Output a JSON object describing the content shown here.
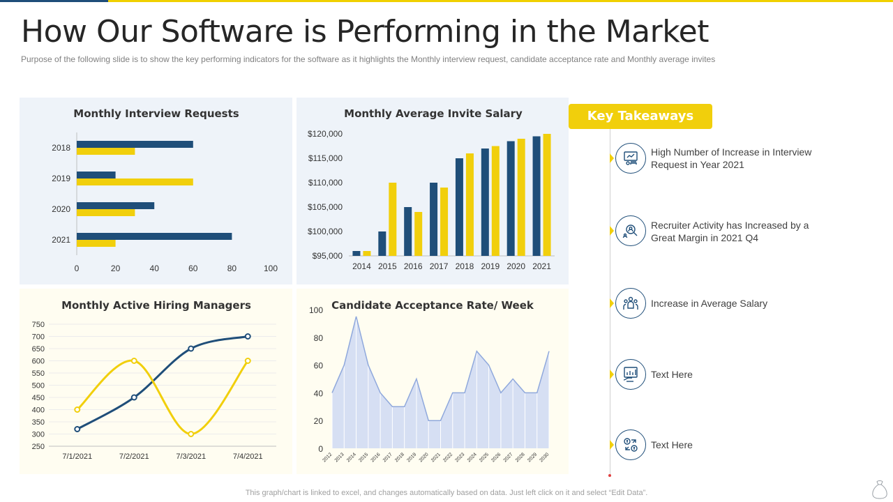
{
  "header": {
    "title": "How Our Software is Performing in the Market",
    "subtitle": "Purpose of the following  slide is to show the key performing  indicators for the software  as it highlights the Monthly interview  request, candidate acceptance rate and Monthly average  invites"
  },
  "colors": {
    "navy": "#1f4e79",
    "yellow": "#f1cf0c",
    "area_fill": "#d6dff3",
    "area_line": "#8fa8dc"
  },
  "chart_data": [
    {
      "type": "bar",
      "orientation": "horizontal",
      "title": "Monthly Interview Requests",
      "categories": [
        "2018",
        "2019",
        "2020",
        "2021"
      ],
      "series": [
        {
          "color": "#1f4e79",
          "values": [
            60,
            20,
            40,
            80
          ]
        },
        {
          "color": "#f1cf0c",
          "values": [
            30,
            60,
            30,
            20
          ]
        }
      ],
      "xlim": [
        0,
        100
      ],
      "xticks": [
        "0",
        "20",
        "40",
        "60",
        "80",
        "100"
      ]
    },
    {
      "type": "bar",
      "title": "Monthly Average Invite Salary",
      "categories": [
        "2014",
        "2015",
        "2016",
        "2017",
        "2018",
        "2019",
        "2020",
        "2021"
      ],
      "series": [
        {
          "color": "#1f4e79",
          "values": [
            96000,
            100000,
            105000,
            110000,
            115000,
            117000,
            118500,
            119500
          ]
        },
        {
          "color": "#f1cf0c",
          "values": [
            96000,
            110000,
            104000,
            109000,
            116000,
            117500,
            119000,
            120000
          ]
        }
      ],
      "ylim": [
        95000,
        120000
      ],
      "yticks": [
        "$95,000",
        "$100,000",
        "$105,000",
        "$110,000",
        "$115,000",
        "$120,000"
      ]
    },
    {
      "type": "line",
      "title": "Monthly Active Hiring Managers",
      "categories": [
        "7/1/2021",
        "7/2/2021",
        "7/3/2021",
        "7/4/2021"
      ],
      "series": [
        {
          "color": "#1f4e79",
          "values": [
            320,
            450,
            650,
            700
          ]
        },
        {
          "color": "#f1cf0c",
          "values": [
            400,
            600,
            300,
            600
          ]
        }
      ],
      "ylim": [
        250,
        750
      ],
      "yticks": [
        "250",
        "300",
        "350",
        "400",
        "450",
        "500",
        "550",
        "600",
        "650",
        "700",
        "750"
      ],
      "grid": true
    },
    {
      "type": "area",
      "title": "Candidate Acceptance Rate/ Week",
      "x": [
        "2012",
        "2013",
        "2014",
        "2015",
        "2016",
        "2017",
        "2018",
        "2019",
        "2020",
        "2021",
        "2022",
        "2023",
        "2024",
        "2025",
        "2026",
        "2027",
        "2028",
        "2029",
        "2030"
      ],
      "values": [
        40,
        60,
        95,
        60,
        40,
        30,
        30,
        50,
        20,
        20,
        40,
        40,
        70,
        60,
        40,
        50,
        40,
        40,
        70
      ],
      "ylim": [
        0,
        100
      ],
      "yticks": [
        "0",
        "20",
        "40",
        "60",
        "80",
        "100"
      ]
    }
  ],
  "takeaways": {
    "title": "Key Takeaways",
    "items": [
      {
        "text": "High Number of Increase in Interview Request in Year 2021",
        "icon": "presentation-icon"
      },
      {
        "text": "Recruiter Activity has Increased by a Great Margin  in 2021 Q4",
        "icon": "team-search-icon"
      },
      {
        "text": "Increase in Average Salary",
        "icon": "people-group-icon"
      },
      {
        "text": "Text Here",
        "icon": "growth-chart-icon"
      },
      {
        "text": "Text Here",
        "icon": "money-exchange-icon"
      }
    ]
  },
  "footer": {
    "note": "This graph/chart is linked to excel,  and changes automatically based on data. Just left click on it and select “Edit Data”."
  }
}
